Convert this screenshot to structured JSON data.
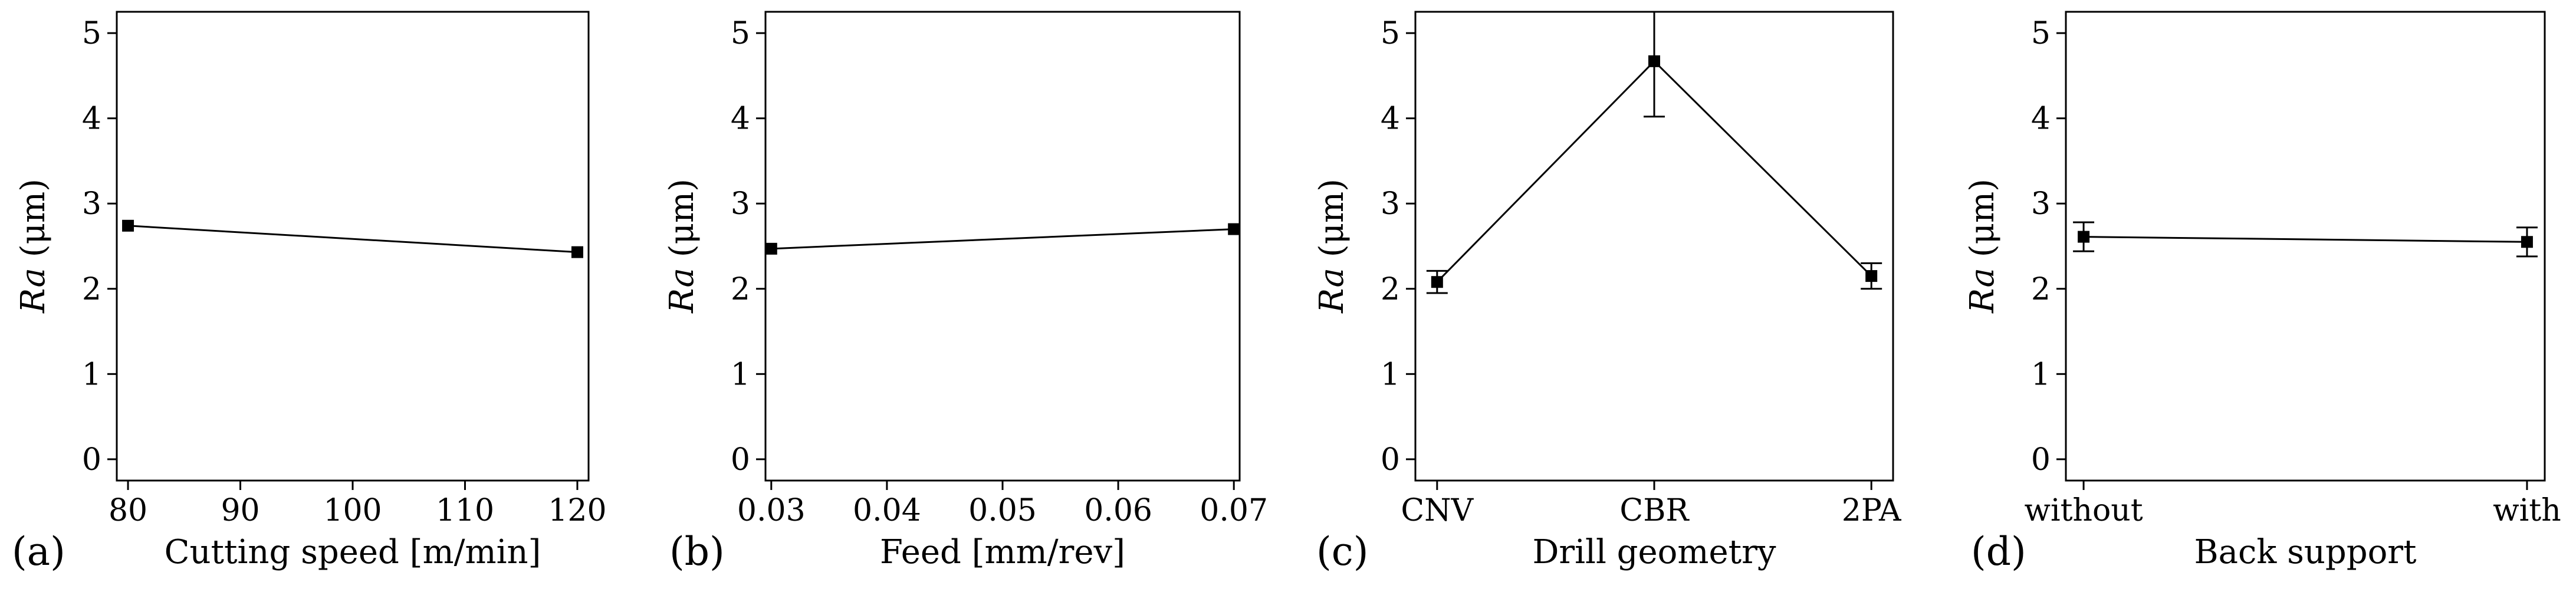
{
  "chart_data": [
    {
      "id": "a",
      "type": "line",
      "panel_label": "(a)",
      "xlabel": "Cutting speed [m/min]",
      "ylabel_italic": "Ra",
      "ylabel_unit": " (μm)",
      "xtick_labels": [
        "80",
        "90",
        "100",
        "110",
        "120"
      ],
      "ytick_labels": [
        "0",
        "1",
        "2",
        "3",
        "4",
        "5"
      ],
      "xlim": [
        79,
        121
      ],
      "ylim": [
        -0.25,
        5.25
      ],
      "x": [
        80,
        120
      ],
      "y": [
        2.74,
        2.43
      ],
      "error": null
    },
    {
      "id": "b",
      "type": "line",
      "panel_label": "(b)",
      "xlabel": "Feed [mm/rev]",
      "ylabel_italic": "Ra",
      "ylabel_unit": " (μm)",
      "xtick_labels": [
        "0.03",
        "0.04",
        "0.05",
        "0.06",
        "0.07"
      ],
      "ytick_labels": [
        "0",
        "1",
        "2",
        "3",
        "4",
        "5"
      ],
      "xlim": [
        0.0295,
        0.0705
      ],
      "ylim": [
        -0.25,
        5.25
      ],
      "x": [
        0.03,
        0.07
      ],
      "y": [
        2.47,
        2.7
      ],
      "error": null
    },
    {
      "id": "c",
      "type": "line",
      "panel_label": "(c)",
      "xlabel": "Drill geometry",
      "ylabel_italic": "Ra",
      "ylabel_unit": " (μm)",
      "xtick_labels": [
        "CNV",
        "CBR",
        "2PA"
      ],
      "ytick_labels": [
        "0",
        "1",
        "2",
        "3",
        "4",
        "5"
      ],
      "xlim": [
        -0.1,
        2.1
      ],
      "ylim": [
        -0.25,
        5.25
      ],
      "x": [
        0,
        1,
        2
      ],
      "y": [
        2.08,
        4.67,
        2.15
      ],
      "error": [
        0.13,
        0.65,
        0.15
      ]
    },
    {
      "id": "d",
      "type": "line",
      "panel_label": "(d)",
      "xlabel": "Back support",
      "ylabel_italic": "Ra",
      "ylabel_unit": " (μm)",
      "xtick_labels": [
        "without",
        "with"
      ],
      "ytick_labels": [
        "0",
        "1",
        "2",
        "3",
        "4",
        "5"
      ],
      "xlim": [
        -0.04,
        1.04
      ],
      "ylim": [
        -0.25,
        5.25
      ],
      "x": [
        0,
        1
      ],
      "y": [
        2.61,
        2.55
      ],
      "error": [
        0.17,
        0.17
      ]
    }
  ]
}
